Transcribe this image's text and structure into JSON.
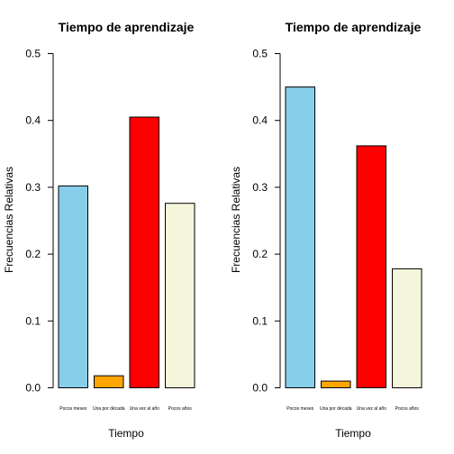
{
  "chart_data": [
    {
      "type": "bar",
      "title": "Tiempo de aprendizaje",
      "xlabel": "Tiempo",
      "ylabel": "Frecuencias Relativas",
      "ylim": [
        0,
        0.5
      ],
      "yticks": [
        "0.0",
        "0.1",
        "0.2",
        "0.3",
        "0.4",
        "0.5"
      ],
      "categories": [
        "Pocos meses",
        "Una por década",
        "Una vez al año",
        "Pocos años"
      ],
      "values": [
        0.302,
        0.018,
        0.405,
        0.276
      ],
      "colors": [
        "#87CEEB",
        "#FFA500",
        "#FF0000",
        "#F5F5DC"
      ],
      "grid": false,
      "legend": "none"
    },
    {
      "type": "bar",
      "title": "Tiempo de aprendizaje",
      "xlabel": "Tiempo",
      "ylabel": "Frecuencias Relativas",
      "ylim": [
        0,
        0.5
      ],
      "yticks": [
        "0.0",
        "0.1",
        "0.2",
        "0.3",
        "0.4",
        "0.5"
      ],
      "categories": [
        "Pocos meses",
        "Una por década",
        "Una vez al año",
        "Pocos años"
      ],
      "values": [
        0.45,
        0.01,
        0.362,
        0.178
      ],
      "colors": [
        "#87CEEB",
        "#FFA500",
        "#FF0000",
        "#F5F5DC"
      ],
      "grid": false,
      "legend": "none"
    }
  ]
}
